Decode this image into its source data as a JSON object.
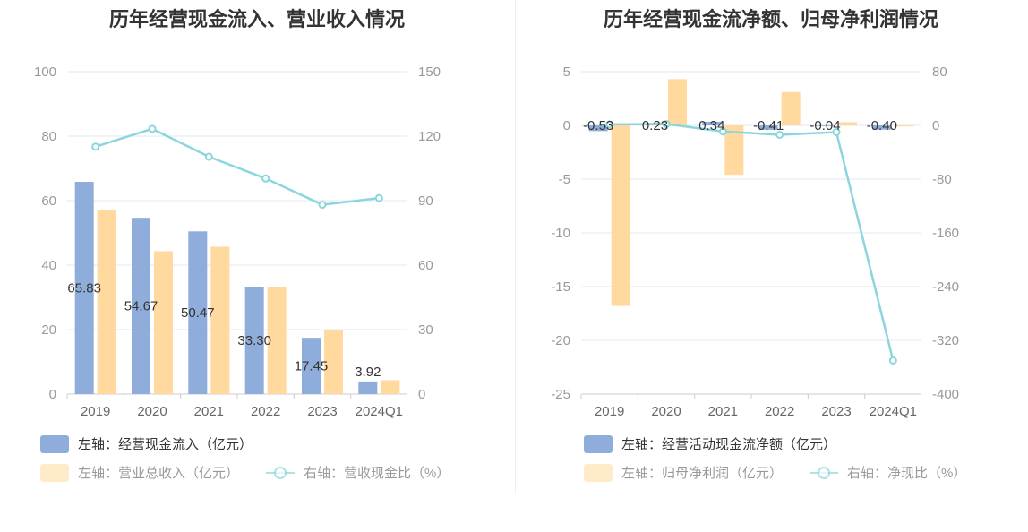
{
  "colors": {
    "blue": "#8eadda",
    "orange": "#ffd99e",
    "cyan": "#8ad6dc",
    "grid": "#e3e7f2",
    "axis": "#999999"
  },
  "chart_data": [
    {
      "type": "bar",
      "title": "历年经营现金流入、营业收入情况",
      "categories": [
        "2019",
        "2020",
        "2021",
        "2022",
        "2023",
        "2024Q1"
      ],
      "y_left": {
        "min": 0,
        "max": 100,
        "ticks": [
          "0",
          "20",
          "40",
          "60",
          "80",
          "100"
        ]
      },
      "y_right": {
        "min": 0,
        "max": 150,
        "ticks": [
          "0",
          "30",
          "60",
          "90",
          "120",
          "150"
        ]
      },
      "series": [
        {
          "name": "左轴：经营现金流入（亿元）",
          "type": "bar",
          "axis": "left",
          "color": "#8eadda",
          "values": [
            65.83,
            54.67,
            50.47,
            33.3,
            17.45,
            3.92
          ],
          "labels": [
            "65.83",
            "54.67",
            "50.47",
            "33.30",
            "17.45",
            "3.92"
          ]
        },
        {
          "name": "左轴：营业总收入（亿元）",
          "type": "bar",
          "axis": "left",
          "color": "#ffd99e",
          "values": [
            57.2,
            44.3,
            45.7,
            33.2,
            19.8,
            4.3
          ]
        },
        {
          "name": "右轴：营收现金比（%）",
          "type": "line",
          "axis": "right",
          "color": "#8ad6dc",
          "values": [
            115.1,
            123.4,
            110.4,
            100.3,
            88.1,
            91.2
          ]
        }
      ]
    },
    {
      "type": "bar",
      "title": "历年经营现金流净额、归母净利润情况",
      "categories": [
        "2019",
        "2020",
        "2021",
        "2022",
        "2023",
        "2024Q1"
      ],
      "y_left": {
        "min": -25,
        "max": 5,
        "ticks": [
          "-25",
          "-20",
          "-15",
          "-10",
          "-5",
          "0",
          "5"
        ]
      },
      "y_right": {
        "min": -400,
        "max": 80,
        "ticks": [
          "-400",
          "-320",
          "-240",
          "-160",
          "-80",
          "0",
          "80"
        ]
      },
      "series": [
        {
          "name": "左轴：经营活动现金流净额（亿元）",
          "type": "bar",
          "axis": "left",
          "color": "#8eadda",
          "values": [
            -0.53,
            0.23,
            0.34,
            -0.41,
            -0.04,
            -0.4
          ],
          "labels": [
            "-0.53",
            "0.23",
            "0.34",
            "-0.41",
            "-0.04",
            "-0.40"
          ]
        },
        {
          "name": "左轴：归母净利润（亿元）",
          "type": "bar",
          "axis": "left",
          "color": "#ffd99e",
          "values": [
            -16.8,
            4.3,
            -4.6,
            3.1,
            0.3,
            -0.1
          ]
        },
        {
          "name": "右轴：净现比（%）",
          "type": "line",
          "axis": "right",
          "color": "#8ad6dc",
          "values": [
            1.5,
            2.0,
            -9.0,
            -14.0,
            -10.0,
            -350.0
          ]
        }
      ]
    }
  ]
}
